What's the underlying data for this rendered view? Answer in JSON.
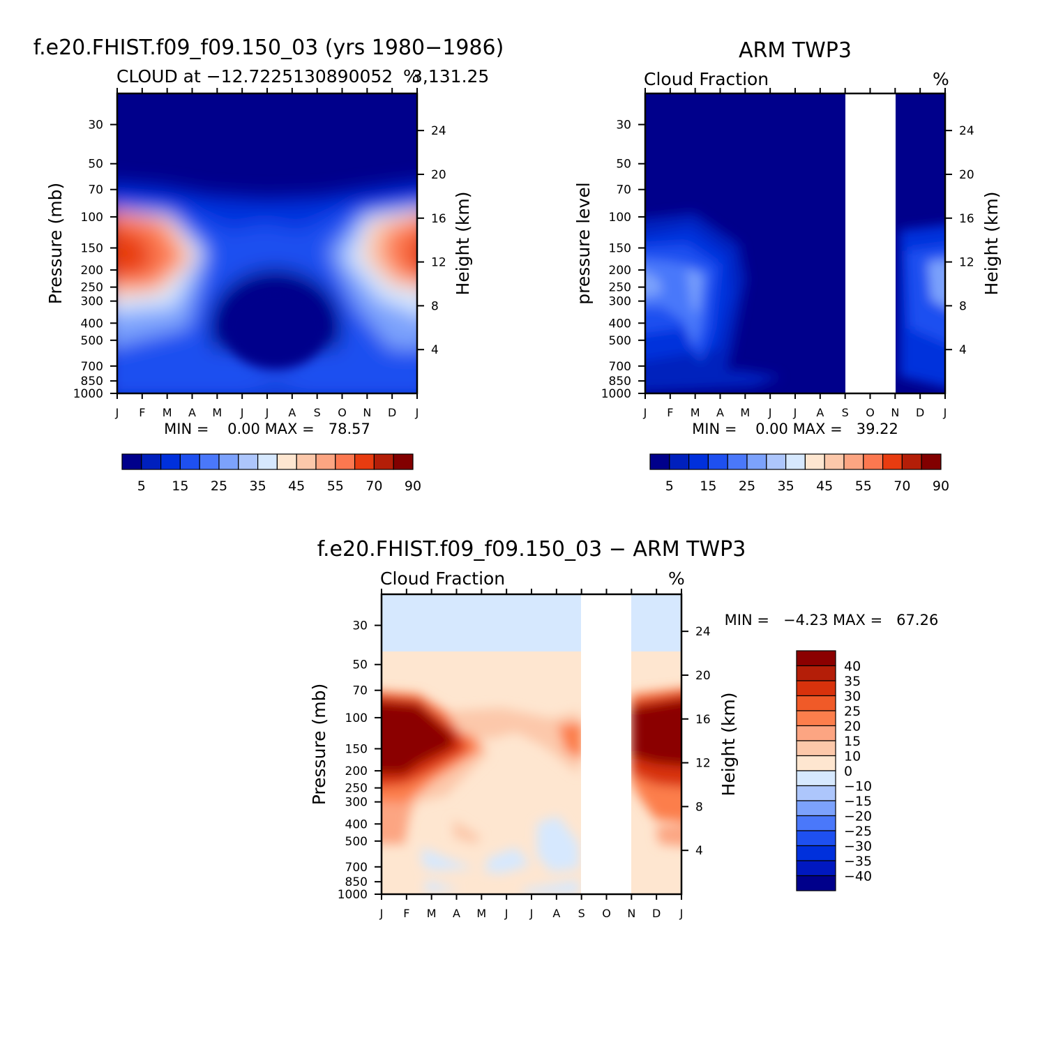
{
  "chart_data": [
    {
      "type": "heatmap",
      "title": "f.e20.FHIST.f09_f09.150_03 (yrs 1980-1986)",
      "subtitle": "CLOUD at -12.7225130890052",
      "subtitle_overlap": "3,131.25",
      "units": "%",
      "ylabel": "Pressure (mb)",
      "y2label": "Height (km)",
      "x_ticks": [
        "J",
        "F",
        "M",
        "A",
        "M",
        "J",
        "J",
        "A",
        "S",
        "O",
        "N",
        "D",
        "J"
      ],
      "y_ticks": [
        30,
        50,
        70,
        100,
        150,
        200,
        250,
        300,
        400,
        500,
        700,
        850,
        1000
      ],
      "y2_ticks": [
        24,
        20,
        16,
        12,
        8,
        4
      ],
      "ylim": [
        1000,
        20
      ],
      "stats": "MIN =    0.00 MAX =   78.57",
      "stats_values": {
        "min": 0.0,
        "max": 78.57
      },
      "colorbar": {
        "labels": [
          "5",
          "15",
          "25",
          "35",
          "45",
          "55",
          "70",
          "90"
        ],
        "colors": [
          "#00008b",
          "#0020bd",
          "#0030dc",
          "#1e50f0",
          "#4a78fa",
          "#7ca2fc",
          "#adc6fc",
          "#d6e8fe",
          "#fee6d0",
          "#fcc8aa",
          "#fca582",
          "#fc7850",
          "#e83c10",
          "#b41e08",
          "#820000"
        ]
      }
    },
    {
      "type": "heatmap",
      "title": "ARM TWP3",
      "subtitle": "Cloud Fraction",
      "units": "%",
      "ylabel": "pressure level",
      "y2label": "Height (km)",
      "x_ticks": [
        "J",
        "F",
        "M",
        "A",
        "M",
        "J",
        "J",
        "A",
        "S",
        "O",
        "N",
        "D",
        "J"
      ],
      "y_ticks": [
        30,
        50,
        70,
        100,
        150,
        200,
        250,
        300,
        400,
        500,
        700,
        850,
        1000
      ],
      "y2_ticks": [
        24,
        20,
        16,
        12,
        8,
        4
      ],
      "ylim": [
        1000,
        20
      ],
      "missing_months": [
        "S",
        "O"
      ],
      "stats": "MIN =    0.00 MAX =   39.22",
      "stats_values": {
        "min": 0.0,
        "max": 39.22
      },
      "colorbar": {
        "labels": [
          "5",
          "15",
          "25",
          "35",
          "45",
          "55",
          "70",
          "90"
        ],
        "colors": [
          "#00008b",
          "#0020bd",
          "#0030dc",
          "#1e50f0",
          "#4a78fa",
          "#7ca2fc",
          "#adc6fc",
          "#d6e8fe",
          "#fee6d0",
          "#fcc8aa",
          "#fca582",
          "#fc7850",
          "#e83c10",
          "#b41e08",
          "#820000"
        ]
      }
    },
    {
      "type": "heatmap",
      "title": "f.e20.FHIST.f09_f09.150_03 - ARM TWP3",
      "subtitle": "Cloud Fraction",
      "units": "%",
      "ylabel": "Pressure (mb)",
      "y2label": "Height (km)",
      "x_ticks": [
        "J",
        "F",
        "M",
        "A",
        "M",
        "J",
        "J",
        "A",
        "S",
        "O",
        "N",
        "D",
        "J"
      ],
      "y_ticks": [
        30,
        50,
        70,
        100,
        150,
        200,
        250,
        300,
        400,
        500,
        700,
        850,
        1000
      ],
      "y2_ticks": [
        24,
        20,
        16,
        12,
        8,
        4
      ],
      "ylim": [
        1000,
        20
      ],
      "missing_months": [
        "S",
        "O"
      ],
      "stats": "MIN =   -4.23 MAX =   67.26",
      "stats_values": {
        "min": -4.23,
        "max": 67.26
      },
      "colorbar": {
        "labels": [
          "40",
          "35",
          "30",
          "25",
          "20",
          "15",
          "10",
          "0",
          "-10",
          "-15",
          "-20",
          "-25",
          "-30",
          "-35",
          "-40"
        ],
        "colors": [
          "#8b0000",
          "#b41e08",
          "#d8320c",
          "#f05a28",
          "#fc7e4c",
          "#fca582",
          "#fcc8aa",
          "#fee6d0",
          "#d6e8fe",
          "#adc6fc",
          "#7ca2fc",
          "#4a78fa",
          "#1e50f0",
          "#0030dc",
          "#0018c0",
          "#00008b"
        ]
      }
    }
  ]
}
